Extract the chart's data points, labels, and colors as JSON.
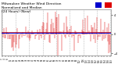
{
  "title_line1": "Milwaukee Weather Wind Direction",
  "title_line2": "Normalized and Median",
  "title_line3": "(24 Hours) (New)",
  "background_color": "#ffffff",
  "plot_bg_color": "#ffffff",
  "bar_color": "#dd0000",
  "median_line_color": "#0000cc",
  "ref_line_color": "#cc0000",
  "median_value": 0.25,
  "ref_value": 0.4,
  "ylim": [
    -4.5,
    5.2
  ],
  "yticks": [
    -4,
    0,
    4
  ],
  "grid_color": "#bbbbbb",
  "legend_blue": "#0000cc",
  "legend_red": "#dd0000",
  "n_points": 144,
  "title_fontsize": 3.2,
  "tick_fontsize": 2.5
}
